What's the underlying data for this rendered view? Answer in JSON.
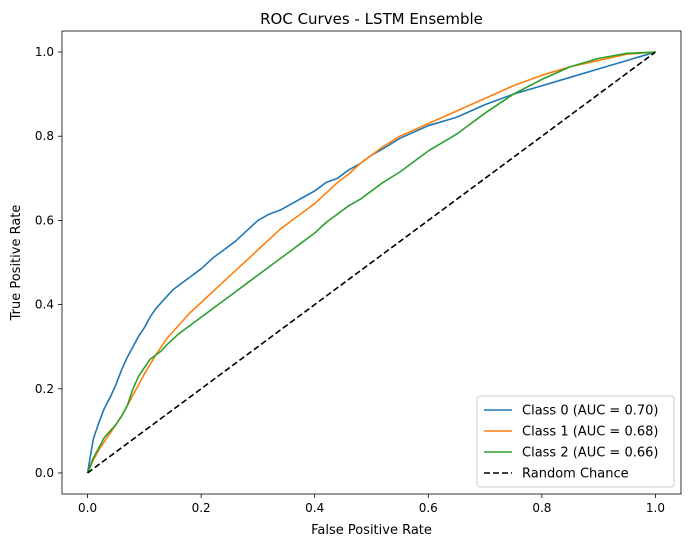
{
  "chart_data": {
    "type": "line",
    "title": "ROC Curves - LSTM Ensemble",
    "xlabel": "False Positive Rate",
    "ylabel": "True Positive Rate",
    "xlim": [
      -0.045,
      1.045
    ],
    "ylim": [
      -0.05,
      1.05
    ],
    "xticks": [
      0.0,
      0.2,
      0.4,
      0.6,
      0.8,
      1.0
    ],
    "yticks": [
      0.0,
      0.2,
      0.4,
      0.6,
      0.8,
      1.0
    ],
    "xtick_labels": [
      "0.0",
      "0.2",
      "0.4",
      "0.6",
      "0.8",
      "1.0"
    ],
    "ytick_labels": [
      "0.0",
      "0.2",
      "0.4",
      "0.6",
      "0.8",
      "1.0"
    ],
    "grid": false,
    "legend_position": "bottom-right",
    "series": [
      {
        "name": "Class 0 (AUC = 0.70)",
        "color": "#1f77b4",
        "x": [
          0.0,
          0.005,
          0.01,
          0.02,
          0.03,
          0.04,
          0.05,
          0.06,
          0.07,
          0.08,
          0.09,
          0.1,
          0.11,
          0.12,
          0.13,
          0.14,
          0.15,
          0.16,
          0.18,
          0.2,
          0.22,
          0.24,
          0.26,
          0.28,
          0.3,
          0.32,
          0.34,
          0.36,
          0.38,
          0.4,
          0.42,
          0.44,
          0.46,
          0.48,
          0.5,
          0.52,
          0.55,
          0.6,
          0.65,
          0.7,
          0.75,
          0.8,
          0.85,
          0.9,
          0.95,
          1.0
        ],
        "y": [
          0.0,
          0.04,
          0.08,
          0.12,
          0.155,
          0.18,
          0.21,
          0.245,
          0.275,
          0.3,
          0.325,
          0.345,
          0.37,
          0.39,
          0.405,
          0.42,
          0.435,
          0.445,
          0.465,
          0.485,
          0.51,
          0.53,
          0.55,
          0.575,
          0.6,
          0.615,
          0.625,
          0.64,
          0.655,
          0.67,
          0.69,
          0.7,
          0.72,
          0.735,
          0.755,
          0.77,
          0.795,
          0.825,
          0.845,
          0.875,
          0.9,
          0.92,
          0.94,
          0.96,
          0.98,
          1.0
        ]
      },
      {
        "name": "Class 1 (AUC = 0.68)",
        "color": "#ff7f0e",
        "x": [
          0.0,
          0.01,
          0.02,
          0.03,
          0.04,
          0.05,
          0.06,
          0.07,
          0.08,
          0.09,
          0.1,
          0.12,
          0.14,
          0.16,
          0.18,
          0.2,
          0.22,
          0.24,
          0.26,
          0.28,
          0.3,
          0.32,
          0.34,
          0.36,
          0.38,
          0.4,
          0.42,
          0.44,
          0.46,
          0.48,
          0.5,
          0.52,
          0.55,
          0.6,
          0.65,
          0.7,
          0.75,
          0.8,
          0.85,
          0.9,
          0.95,
          1.0
        ],
        "y": [
          0.0,
          0.03,
          0.055,
          0.075,
          0.095,
          0.115,
          0.135,
          0.16,
          0.185,
          0.21,
          0.235,
          0.28,
          0.32,
          0.35,
          0.38,
          0.405,
          0.43,
          0.455,
          0.48,
          0.505,
          0.53,
          0.555,
          0.58,
          0.6,
          0.62,
          0.64,
          0.665,
          0.69,
          0.71,
          0.735,
          0.755,
          0.775,
          0.8,
          0.83,
          0.86,
          0.89,
          0.92,
          0.945,
          0.965,
          0.98,
          0.995,
          1.0
        ]
      },
      {
        "name": "Class 2 (AUC = 0.66)",
        "color": "#2ca02c",
        "x": [
          0.0,
          0.01,
          0.02,
          0.03,
          0.04,
          0.05,
          0.06,
          0.07,
          0.08,
          0.09,
          0.1,
          0.11,
          0.12,
          0.13,
          0.14,
          0.16,
          0.18,
          0.2,
          0.22,
          0.24,
          0.26,
          0.28,
          0.3,
          0.32,
          0.34,
          0.36,
          0.38,
          0.4,
          0.42,
          0.44,
          0.46,
          0.48,
          0.5,
          0.52,
          0.55,
          0.58,
          0.6,
          0.65,
          0.7,
          0.75,
          0.8,
          0.85,
          0.9,
          0.95,
          1.0
        ],
        "y": [
          0.0,
          0.035,
          0.06,
          0.085,
          0.1,
          0.115,
          0.135,
          0.16,
          0.2,
          0.23,
          0.25,
          0.27,
          0.28,
          0.29,
          0.305,
          0.33,
          0.35,
          0.37,
          0.39,
          0.41,
          0.43,
          0.45,
          0.47,
          0.49,
          0.51,
          0.53,
          0.55,
          0.57,
          0.595,
          0.615,
          0.635,
          0.65,
          0.67,
          0.69,
          0.715,
          0.745,
          0.765,
          0.805,
          0.855,
          0.9,
          0.935,
          0.965,
          0.985,
          0.997,
          1.0
        ]
      },
      {
        "name": "Random Chance",
        "color": "#000000",
        "dashed": true,
        "x": [
          0.0,
          1.0
        ],
        "y": [
          0.0,
          1.0
        ]
      }
    ]
  }
}
